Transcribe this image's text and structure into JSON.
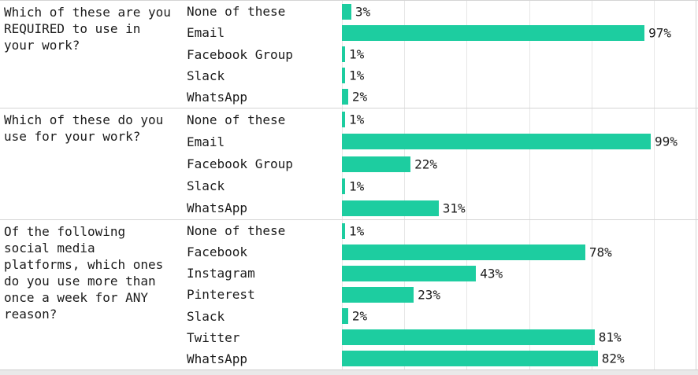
{
  "colors": {
    "bar": "#1dcda0",
    "grid": "#e7e7e7",
    "separator": "#d4d4d4",
    "text": "#1b1b1b",
    "bottom_strip": "#e9e9e9",
    "background": "#ffffff"
  },
  "chart_data": {
    "type": "bar",
    "orientation": "horizontal",
    "value_suffix": "%",
    "xlim": [
      0,
      100
    ],
    "gridline_step_percent": 20,
    "grid": true,
    "legend_position": "none",
    "groups": [
      {
        "question": "Which of these are you REQUIRED to use in your work?",
        "categories": [
          "None of these",
          "Email",
          "Facebook Group",
          "Slack",
          "WhatsApp"
        ],
        "values": [
          3,
          97,
          1,
          1,
          2
        ]
      },
      {
        "question": "Which of these do you use for your work?",
        "categories": [
          "None of these",
          "Email",
          "Facebook Group",
          "Slack",
          "WhatsApp"
        ],
        "values": [
          1,
          99,
          22,
          1,
          31
        ]
      },
      {
        "question": "Of the following social media platforms, which ones do you use more than once a week for ANY reason?",
        "categories": [
          "None of these",
          "Facebook",
          "Instagram",
          "Pinterest",
          "Slack",
          "Twitter",
          "WhatsApp"
        ],
        "values": [
          1,
          78,
          43,
          23,
          2,
          81,
          82
        ]
      }
    ]
  }
}
